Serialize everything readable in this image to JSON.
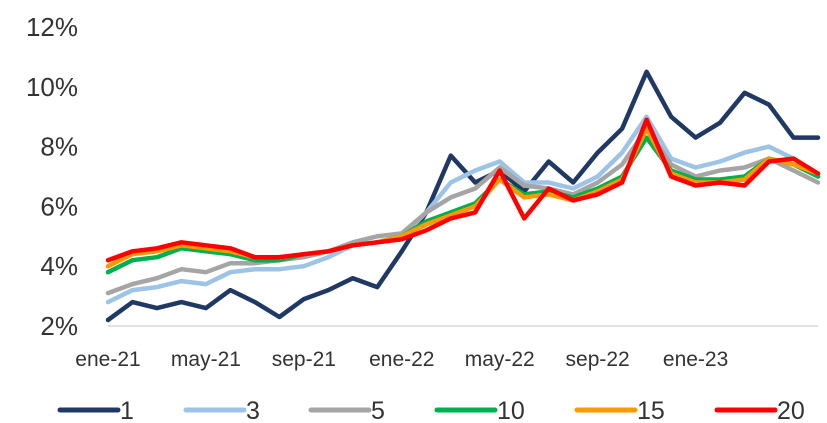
{
  "chart_data": {
    "type": "line",
    "title": "",
    "xlabel": "",
    "ylabel": "",
    "x_range": [
      "2021-01",
      "2023-06"
    ],
    "ylim": [
      2,
      12
    ],
    "y_ticks": [
      "2%",
      "4%",
      "6%",
      "8%",
      "10%",
      "12%"
    ],
    "x_ticks": [
      "ene-21",
      "may-21",
      "sep-21",
      "ene-22",
      "may-22",
      "sep-22",
      "ene-23"
    ],
    "legend_position": "bottom",
    "grid": false,
    "series": [
      {
        "name": "1",
        "color": "#1f3864",
        "x": [
          "2021-01",
          "2021-02",
          "2021-03",
          "2021-04",
          "2021-05",
          "2021-06",
          "2021-07",
          "2021-08",
          "2021-09",
          "2021-10",
          "2021-11",
          "2021-12",
          "2022-01",
          "2022-02",
          "2022-03",
          "2022-04",
          "2022-05",
          "2022-06",
          "2022-07",
          "2022-08",
          "2022-09",
          "2022-10",
          "2022-11",
          "2022-12",
          "2023-01",
          "2023-02",
          "2023-03",
          "2023-04",
          "2023-05",
          "2023-06"
        ],
        "values": [
          2.2,
          2.8,
          2.6,
          2.8,
          2.6,
          3.2,
          2.8,
          2.3,
          2.9,
          3.2,
          3.6,
          3.3,
          4.5,
          5.8,
          7.7,
          6.8,
          7.2,
          6.5,
          7.5,
          6.8,
          7.8,
          8.6,
          10.5,
          9.0,
          8.3,
          8.8,
          9.8,
          9.4,
          8.3,
          8.3
        ]
      },
      {
        "name": "3",
        "color": "#9dc3e6",
        "x": [
          "2021-01",
          "2021-02",
          "2021-03",
          "2021-04",
          "2021-05",
          "2021-06",
          "2021-07",
          "2021-08",
          "2021-09",
          "2021-10",
          "2021-11",
          "2021-12",
          "2022-01",
          "2022-02",
          "2022-03",
          "2022-04",
          "2022-05",
          "2022-06",
          "2022-07",
          "2022-08",
          "2022-09",
          "2022-10",
          "2022-11",
          "2022-12",
          "2023-01",
          "2023-02",
          "2023-03",
          "2023-04",
          "2023-05",
          "2023-06"
        ],
        "values": [
          2.8,
          3.2,
          3.3,
          3.5,
          3.4,
          3.8,
          3.9,
          3.9,
          4.0,
          4.3,
          4.7,
          4.8,
          5.0,
          5.8,
          6.8,
          7.2,
          7.5,
          6.8,
          6.8,
          6.6,
          7.0,
          7.8,
          9.0,
          7.6,
          7.3,
          7.5,
          7.8,
          8.0,
          7.6,
          7.0
        ]
      },
      {
        "name": "5",
        "color": "#a5a5a5",
        "x": [
          "2021-01",
          "2021-02",
          "2021-03",
          "2021-04",
          "2021-05",
          "2021-06",
          "2021-07",
          "2021-08",
          "2021-09",
          "2021-10",
          "2021-11",
          "2021-12",
          "2022-01",
          "2022-02",
          "2022-03",
          "2022-04",
          "2022-05",
          "2022-06",
          "2022-07",
          "2022-08",
          "2022-09",
          "2022-10",
          "2022-11",
          "2022-12",
          "2023-01",
          "2023-02",
          "2023-03",
          "2023-04",
          "2023-05",
          "2023-06"
        ],
        "values": [
          3.1,
          3.4,
          3.6,
          3.9,
          3.8,
          4.1,
          4.1,
          4.2,
          4.3,
          4.5,
          4.8,
          5.0,
          5.1,
          5.8,
          6.3,
          6.6,
          7.3,
          6.7,
          6.6,
          6.4,
          6.8,
          7.4,
          8.6,
          7.4,
          7.0,
          7.2,
          7.3,
          7.6,
          7.2,
          6.8
        ]
      },
      {
        "name": "10",
        "color": "#00b050",
        "x": [
          "2021-01",
          "2021-02",
          "2021-03",
          "2021-04",
          "2021-05",
          "2021-06",
          "2021-07",
          "2021-08",
          "2021-09",
          "2021-10",
          "2021-11",
          "2021-12",
          "2022-01",
          "2022-02",
          "2022-03",
          "2022-04",
          "2022-05",
          "2022-06",
          "2022-07",
          "2022-08",
          "2022-09",
          "2022-10",
          "2022-11",
          "2022-12",
          "2023-01",
          "2023-02",
          "2023-03",
          "2023-04",
          "2023-05",
          "2023-06"
        ],
        "values": [
          3.8,
          4.2,
          4.3,
          4.6,
          4.5,
          4.4,
          4.2,
          4.2,
          4.4,
          4.5,
          4.7,
          4.8,
          5.0,
          5.5,
          5.8,
          6.1,
          6.9,
          6.4,
          6.5,
          6.3,
          6.6,
          7.0,
          8.3,
          7.2,
          6.9,
          6.9,
          7.0,
          7.6,
          7.4,
          7.0
        ]
      },
      {
        "name": "15",
        "color": "#ff9900",
        "x": [
          "2021-01",
          "2021-02",
          "2021-03",
          "2021-04",
          "2021-05",
          "2021-06",
          "2021-07",
          "2021-08",
          "2021-09",
          "2021-10",
          "2021-11",
          "2021-12",
          "2022-01",
          "2022-02",
          "2022-03",
          "2022-04",
          "2022-05",
          "2022-06",
          "2022-07",
          "2022-08",
          "2022-09",
          "2022-10",
          "2022-11",
          "2022-12",
          "2023-01",
          "2023-02",
          "2023-03",
          "2023-04",
          "2023-05",
          "2023-06"
        ],
        "values": [
          4.0,
          4.4,
          4.5,
          4.7,
          4.6,
          4.5,
          4.3,
          4.3,
          4.4,
          4.5,
          4.7,
          4.8,
          5.0,
          5.4,
          5.7,
          6.0,
          6.9,
          6.3,
          6.4,
          6.2,
          6.5,
          6.9,
          8.6,
          7.1,
          6.8,
          6.8,
          6.9,
          7.6,
          7.4,
          7.1
        ]
      },
      {
        "name": "20",
        "color": "#ff0000",
        "x": [
          "2021-01",
          "2021-02",
          "2021-03",
          "2021-04",
          "2021-05",
          "2021-06",
          "2021-07",
          "2021-08",
          "2021-09",
          "2021-10",
          "2021-11",
          "2021-12",
          "2022-01",
          "2022-02",
          "2022-03",
          "2022-04",
          "2022-05",
          "2022-06",
          "2022-07",
          "2022-08",
          "2022-09",
          "2022-10",
          "2022-11",
          "2022-12",
          "2023-01",
          "2023-02",
          "2023-03",
          "2023-04",
          "2023-05",
          "2023-06"
        ],
        "values": [
          4.2,
          4.5,
          4.6,
          4.8,
          4.7,
          4.6,
          4.3,
          4.3,
          4.4,
          4.5,
          4.7,
          4.8,
          4.9,
          5.2,
          5.6,
          5.8,
          7.2,
          5.6,
          6.6,
          6.2,
          6.4,
          6.8,
          8.9,
          7.0,
          6.7,
          6.8,
          6.7,
          7.5,
          7.6,
          7.1
        ]
      }
    ]
  }
}
